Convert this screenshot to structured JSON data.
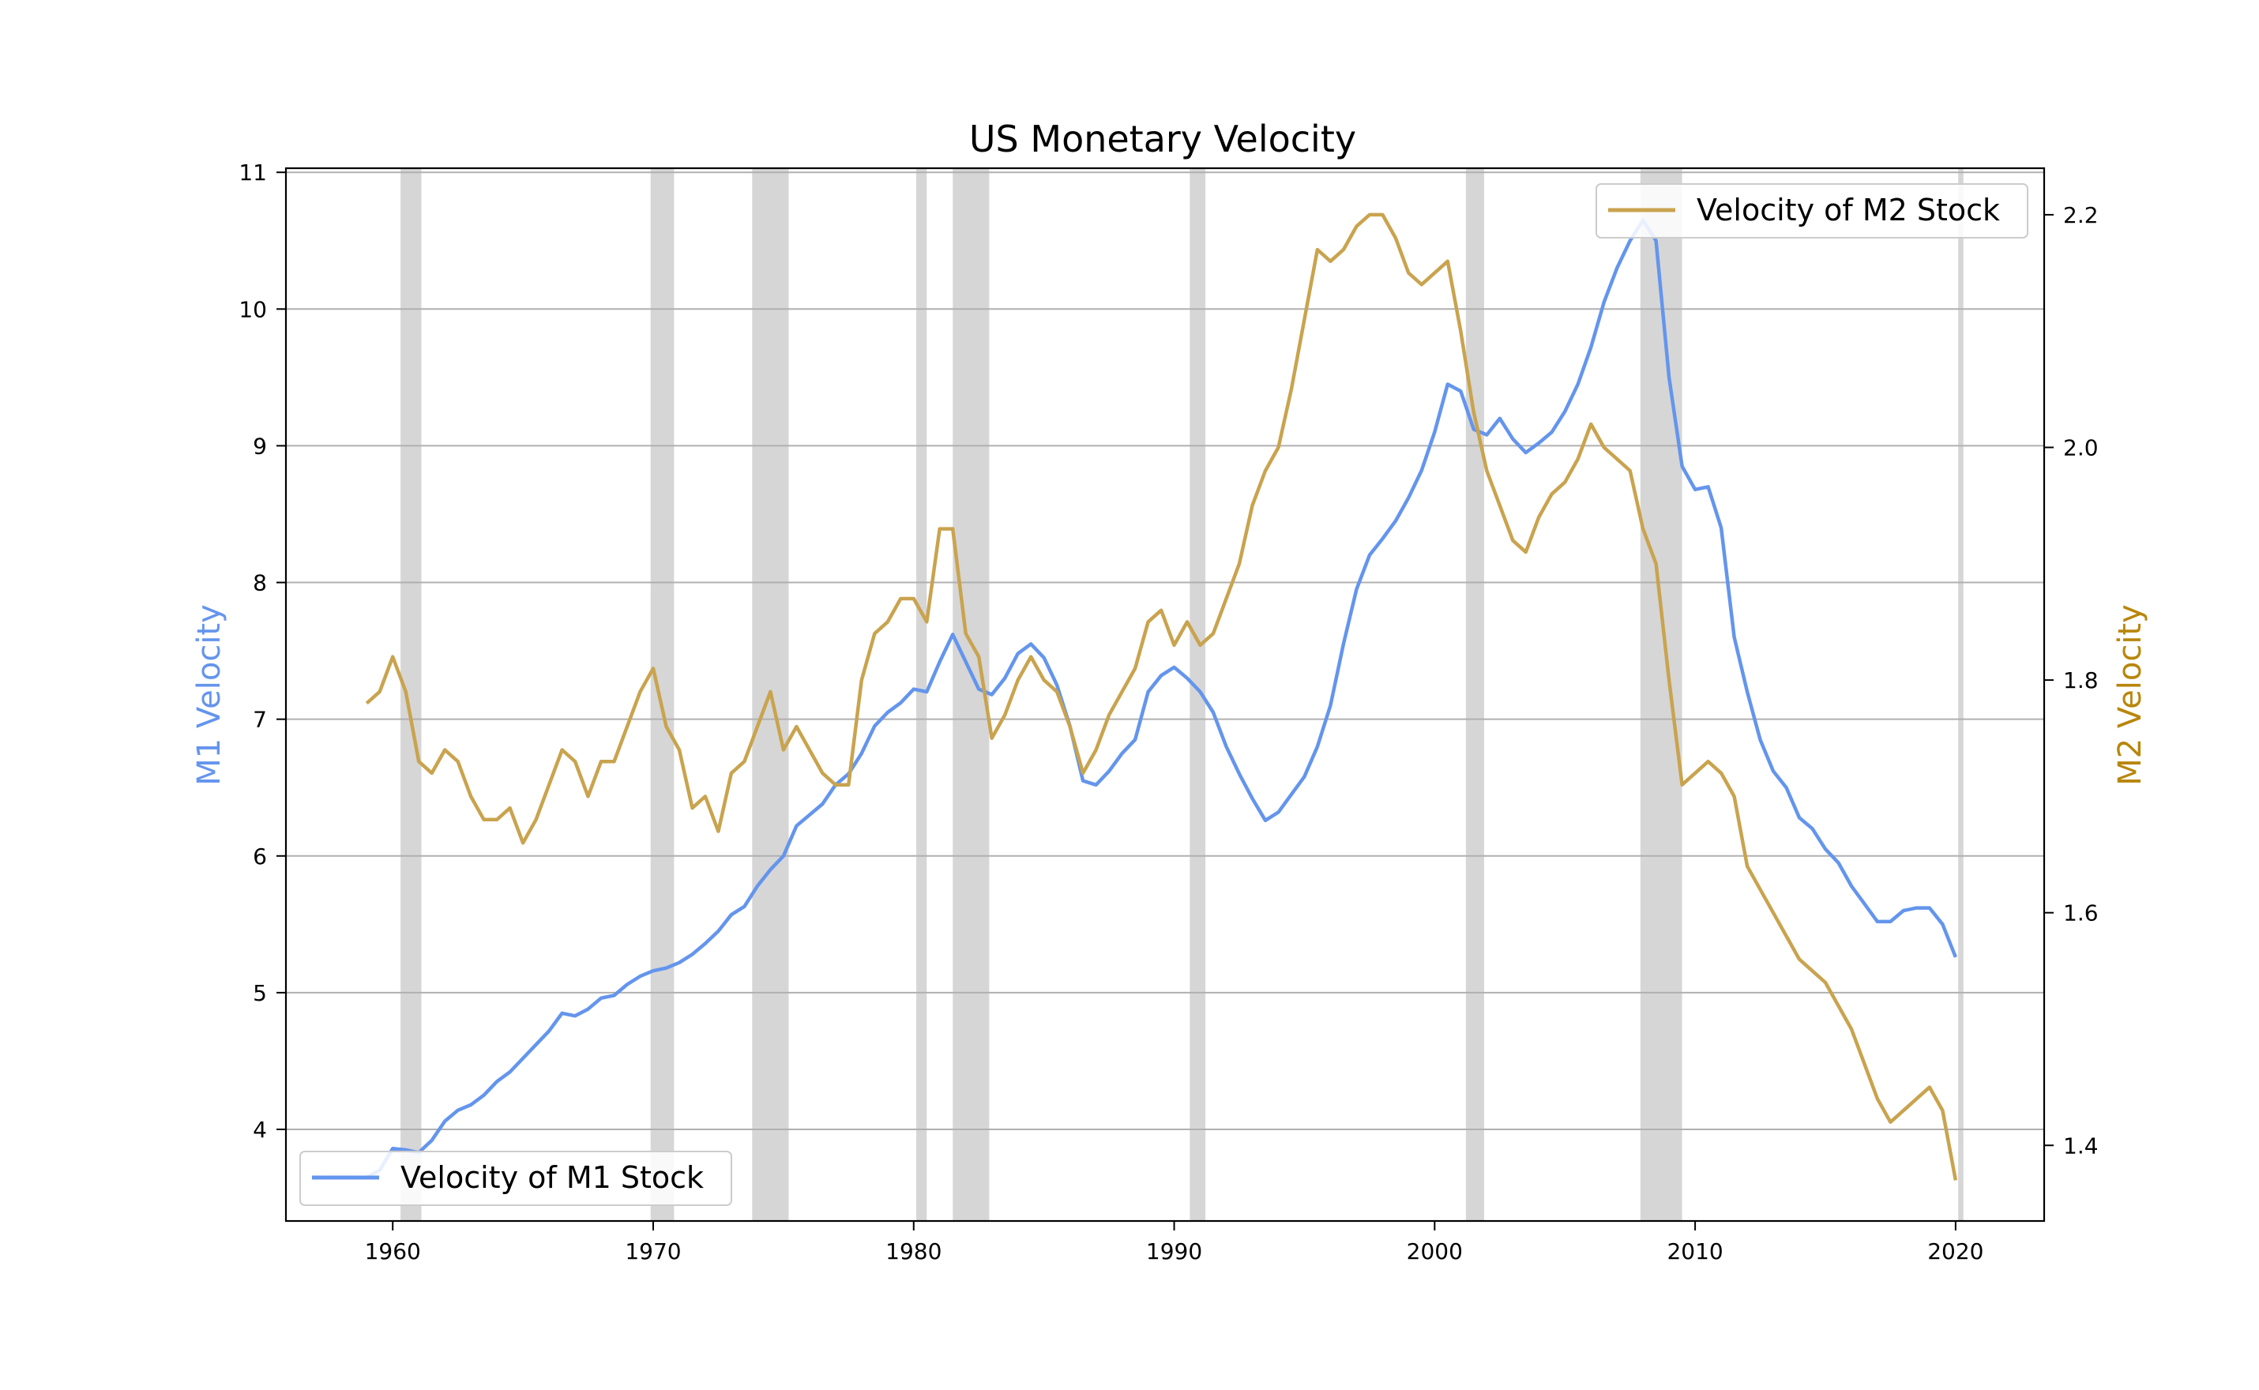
{
  "chart_data": {
    "type": "line",
    "title": "US Monetary Velocity",
    "xlabel": "",
    "ylabel": "M1 Velocity",
    "y2label": "M2 Velocity",
    "xlim": [
      1955.9,
      2023.4
    ],
    "ylim": [
      3.33,
      11.03
    ],
    "y2lim": [
      1.335,
      2.24
    ],
    "xticks": [
      1960,
      1970,
      1980,
      1990,
      2000,
      2010,
      2020
    ],
    "yticks": [
      4,
      5,
      6,
      7,
      8,
      9,
      10,
      11
    ],
    "y2ticks": [
      1.4,
      1.6,
      1.8,
      2.0,
      2.2
    ],
    "ytick_labels": [
      "4",
      "5",
      "6",
      "7",
      "8",
      "9",
      "10",
      "11"
    ],
    "y2tick_labels": [
      "1.4",
      "1.6",
      "1.8",
      "2.0",
      "2.2"
    ],
    "xtick_labels": [
      "1960",
      "1970",
      "1980",
      "1990",
      "2000",
      "2010",
      "2020"
    ],
    "grid": true,
    "colors": {
      "m1": "#6495ED",
      "m2": "#C9A34E",
      "m2_label": "#B8860B",
      "recession": "#C8C8C8"
    },
    "recessions": [
      [
        1960.3,
        1961.1
      ],
      [
        1969.9,
        1970.8
      ],
      [
        1973.8,
        1975.2
      ],
      [
        1980.1,
        1980.5
      ],
      [
        1981.5,
        1982.9
      ],
      [
        1990.6,
        1991.2
      ],
      [
        2001.2,
        2001.9
      ],
      [
        2007.9,
        2009.5
      ],
      [
        2020.1,
        2020.3
      ]
    ],
    "series": [
      {
        "name": "Velocity of M1 Stock",
        "axis": "left",
        "legend": "lower-left",
        "x": [
          1959.0,
          1959.5,
          1960.0,
          1960.5,
          1961.0,
          1961.5,
          1962.0,
          1962.5,
          1963.0,
          1963.5,
          1964.0,
          1964.5,
          1965.0,
          1965.5,
          1966.0,
          1966.5,
          1967.0,
          1967.5,
          1968.0,
          1968.5,
          1969.0,
          1969.5,
          1970.0,
          1970.5,
          1971.0,
          1971.5,
          1972.0,
          1972.5,
          1973.0,
          1973.5,
          1974.0,
          1974.5,
          1975.0,
          1975.5,
          1976.0,
          1976.5,
          1977.0,
          1977.5,
          1978.0,
          1978.5,
          1979.0,
          1979.5,
          1980.0,
          1980.5,
          1981.0,
          1981.5,
          1982.0,
          1982.5,
          1983.0,
          1983.5,
          1984.0,
          1984.5,
          1985.0,
          1985.5,
          1986.0,
          1986.5,
          1987.0,
          1987.5,
          1988.0,
          1988.5,
          1989.0,
          1989.5,
          1990.0,
          1990.5,
          1991.0,
          1991.5,
          1992.0,
          1992.5,
          1993.0,
          1993.5,
          1994.0,
          1994.5,
          1995.0,
          1995.5,
          1996.0,
          1996.5,
          1997.0,
          1997.5,
          1998.0,
          1998.5,
          1999.0,
          1999.5,
          2000.0,
          2000.5,
          2001.0,
          2001.5,
          2002.0,
          2002.5,
          2003.0,
          2003.5,
          2004.0,
          2004.5,
          2005.0,
          2005.5,
          2006.0,
          2006.5,
          2007.0,
          2007.5,
          2008.0,
          2008.5,
          2009.0,
          2009.5,
          2010.0,
          2010.5,
          2011.0,
          2011.5,
          2012.0,
          2012.5,
          2013.0,
          2013.5,
          2014.0,
          2014.5,
          2015.0,
          2015.5,
          2016.0,
          2016.5,
          2017.0,
          2017.5,
          2018.0,
          2018.5,
          2019.0,
          2019.5,
          2020.0
        ],
        "values": [
          3.65,
          3.7,
          3.86,
          3.85,
          3.83,
          3.92,
          4.06,
          4.14,
          4.18,
          4.25,
          4.35,
          4.42,
          4.52,
          4.62,
          4.72,
          4.85,
          4.83,
          4.88,
          4.96,
          4.98,
          5.06,
          5.12,
          5.16,
          5.18,
          5.22,
          5.28,
          5.36,
          5.45,
          5.57,
          5.63,
          5.78,
          5.9,
          6.0,
          6.22,
          6.3,
          6.38,
          6.52,
          6.6,
          6.75,
          6.95,
          7.05,
          7.12,
          7.22,
          7.2,
          7.42,
          7.62,
          7.42,
          7.22,
          7.18,
          7.3,
          7.48,
          7.55,
          7.45,
          7.25,
          6.95,
          6.55,
          6.52,
          6.62,
          6.75,
          6.85,
          7.2,
          7.32,
          7.38,
          7.3,
          7.2,
          7.05,
          6.8,
          6.6,
          6.42,
          6.26,
          6.32,
          6.45,
          6.58,
          6.8,
          7.1,
          7.55,
          7.95,
          8.2,
          8.32,
          8.45,
          8.62,
          8.82,
          9.1,
          9.45,
          9.4,
          9.12,
          9.08,
          9.2,
          9.05,
          8.95,
          9.02,
          9.1,
          9.25,
          9.45,
          9.72,
          10.05,
          10.3,
          10.5,
          10.65,
          10.5,
          9.5,
          8.85,
          8.68,
          8.7,
          8.4,
          7.6,
          7.2,
          6.85,
          6.62,
          6.5,
          6.28,
          6.2,
          6.05,
          5.95,
          5.78,
          5.65,
          5.52,
          5.52,
          5.6,
          5.62,
          5.62,
          5.5,
          5.26
        ]
      },
      {
        "name": "Velocity of M2 Stock",
        "axis": "right",
        "legend": "upper-right",
        "x": [
          1959.0,
          1959.5,
          1960.0,
          1960.5,
          1961.0,
          1961.5,
          1962.0,
          1962.5,
          1963.0,
          1963.5,
          1964.0,
          1964.5,
          1965.0,
          1965.5,
          1966.0,
          1966.5,
          1967.0,
          1967.5,
          1968.0,
          1968.5,
          1969.0,
          1969.5,
          1970.0,
          1970.5,
          1971.0,
          1971.5,
          1972.0,
          1972.5,
          1973.0,
          1973.5,
          1974.0,
          1974.5,
          1975.0,
          1975.5,
          1976.0,
          1976.5,
          1977.0,
          1977.5,
          1978.0,
          1978.5,
          1979.0,
          1979.5,
          1980.0,
          1980.5,
          1981.0,
          1981.5,
          1982.0,
          1982.5,
          1983.0,
          1983.5,
          1984.0,
          1984.5,
          1985.0,
          1985.5,
          1986.0,
          1986.5,
          1987.0,
          1987.5,
          1988.0,
          1988.5,
          1989.0,
          1989.5,
          1990.0,
          1990.5,
          1991.0,
          1991.5,
          1992.0,
          1992.5,
          1993.0,
          1993.5,
          1994.0,
          1994.5,
          1995.0,
          1995.5,
          1996.0,
          1996.5,
          1997.0,
          1997.5,
          1998.0,
          1998.5,
          1999.0,
          1999.5,
          2000.0,
          2000.5,
          2001.0,
          2001.5,
          2002.0,
          2002.5,
          2003.0,
          2003.5,
          2004.0,
          2004.5,
          2005.0,
          2005.5,
          2006.0,
          2006.5,
          2007.0,
          2007.5,
          2008.0,
          2008.5,
          2009.0,
          2009.5,
          2010.0,
          2010.5,
          2011.0,
          2011.5,
          2012.0,
          2012.5,
          2013.0,
          2013.5,
          2014.0,
          2014.5,
          2015.0,
          2015.5,
          2016.0,
          2016.5,
          2017.0,
          2017.5,
          2018.0,
          2018.5,
          2019.0,
          2019.5,
          2020.0
        ],
        "values": [
          1.78,
          1.79,
          1.82,
          1.79,
          1.73,
          1.72,
          1.74,
          1.73,
          1.7,
          1.68,
          1.68,
          1.69,
          1.66,
          1.68,
          1.71,
          1.74,
          1.73,
          1.7,
          1.73,
          1.73,
          1.76,
          1.79,
          1.81,
          1.76,
          1.74,
          1.69,
          1.7,
          1.67,
          1.72,
          1.73,
          1.76,
          1.79,
          1.74,
          1.76,
          1.74,
          1.72,
          1.71,
          1.71,
          1.8,
          1.84,
          1.85,
          1.87,
          1.87,
          1.85,
          1.93,
          1.93,
          1.84,
          1.82,
          1.75,
          1.77,
          1.8,
          1.82,
          1.8,
          1.79,
          1.76,
          1.72,
          1.74,
          1.77,
          1.79,
          1.81,
          1.85,
          1.86,
          1.83,
          1.85,
          1.83,
          1.84,
          1.87,
          1.9,
          1.95,
          1.98,
          2.0,
          2.05,
          2.11,
          2.17,
          2.16,
          2.17,
          2.19,
          2.2,
          2.2,
          2.18,
          2.15,
          2.14,
          2.15,
          2.16,
          2.1,
          2.03,
          1.98,
          1.95,
          1.92,
          1.91,
          1.94,
          1.96,
          1.97,
          1.99,
          2.02,
          2.0,
          1.99,
          1.98,
          1.93,
          1.9,
          1.8,
          1.71,
          1.72,
          1.73,
          1.72,
          1.7,
          1.64,
          1.62,
          1.6,
          1.58,
          1.56,
          1.55,
          1.54,
          1.52,
          1.5,
          1.47,
          1.44,
          1.42,
          1.43,
          1.44,
          1.45,
          1.43,
          1.37
        ]
      }
    ]
  }
}
